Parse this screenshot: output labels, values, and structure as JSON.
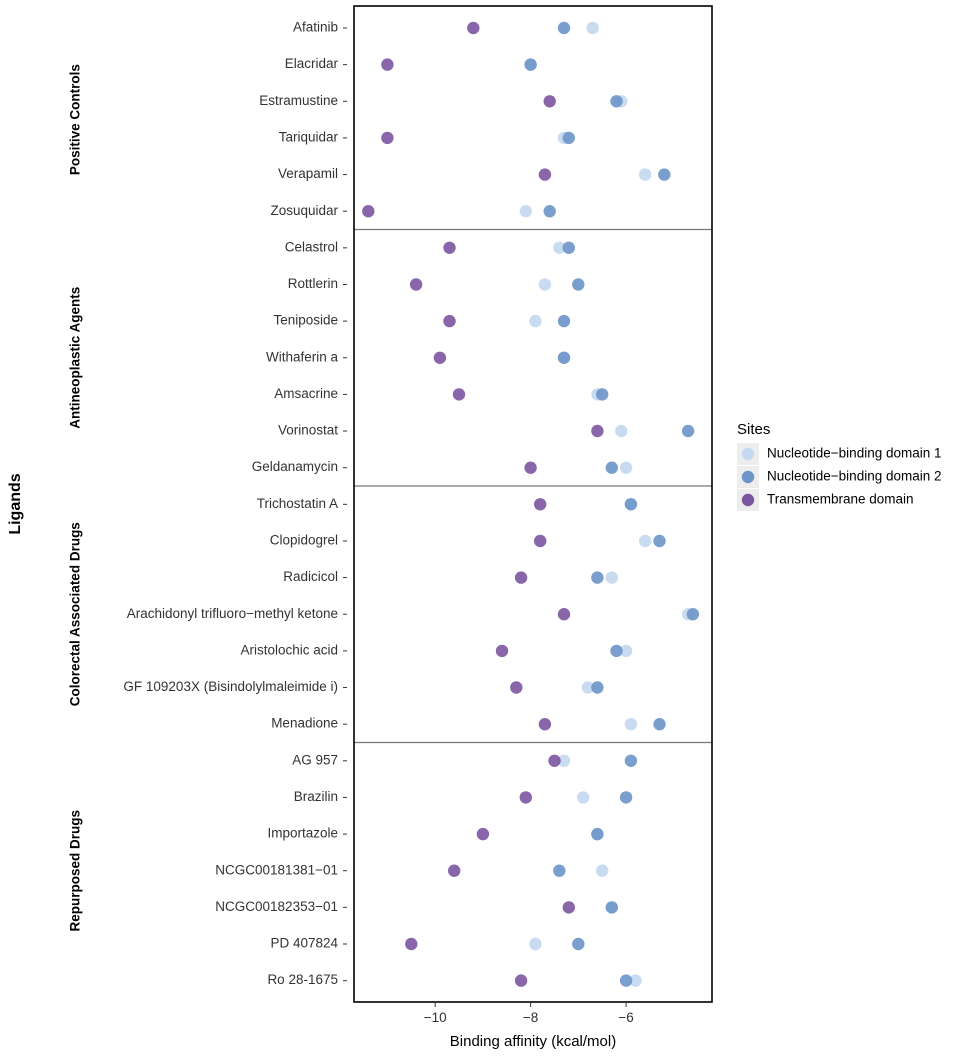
{
  "chart_data": {
    "type": "scatter",
    "xlabel": "Binding affinity (kcal/mol)",
    "ylabel": "Ligands",
    "xlim": [
      -11.7,
      -4.2
    ],
    "xticks": [
      -10,
      -8,
      -6
    ],
    "xtick_labels": [
      "−10",
      "−8",
      "−6"
    ],
    "legend": {
      "title": "Sites",
      "position": "right",
      "entries": [
        "Nucleotide−binding domain 1",
        "Nucleotide−binding domain 2",
        "Transmembrane domain"
      ]
    },
    "series_colors": {
      "nbd1": "#c6d9f0",
      "nbd2": "#6c95c9",
      "tmd": "#7b55a0"
    },
    "groups": [
      {
        "name": "Positive Controls",
        "ligands": [
          {
            "name": "Afatinib",
            "nbd1": -6.7,
            "nbd2": -7.3,
            "tmd": -9.2
          },
          {
            "name": "Elacridar",
            "nbd1": -8.0,
            "nbd2": -8.0,
            "tmd": -11.0
          },
          {
            "name": "Estramustine",
            "nbd1": -6.1,
            "nbd2": -6.2,
            "tmd": -7.6
          },
          {
            "name": "Tariquidar",
            "nbd1": -7.3,
            "nbd2": -7.2,
            "tmd": -11.0
          },
          {
            "name": "Verapamil",
            "nbd1": -5.6,
            "nbd2": -5.2,
            "tmd": -7.7
          },
          {
            "name": "Zosuquidar",
            "nbd1": -8.1,
            "nbd2": -7.6,
            "tmd": -11.4
          }
        ]
      },
      {
        "name": "Antineoplastic Agents",
        "ligands": [
          {
            "name": "Celastrol",
            "nbd1": -7.4,
            "nbd2": -7.2,
            "tmd": -9.7
          },
          {
            "name": "Rottlerin",
            "nbd1": -7.7,
            "nbd2": -7.0,
            "tmd": -10.4
          },
          {
            "name": "Teniposide",
            "nbd1": -7.9,
            "nbd2": -7.3,
            "tmd": -9.7
          },
          {
            "name": "Withaferin a",
            "nbd1": -7.3,
            "nbd2": -7.3,
            "tmd": -9.9
          },
          {
            "name": "Amsacrine",
            "nbd1": -6.6,
            "nbd2": -6.5,
            "tmd": -9.5
          },
          {
            "name": "Vorinostat",
            "nbd1": -6.1,
            "nbd2": -4.7,
            "tmd": -6.6
          },
          {
            "name": "Geldanamycin",
            "nbd1": -6.0,
            "nbd2": -6.3,
            "tmd": -8.0
          }
        ]
      },
      {
        "name": "Colorectal Associated Drugs",
        "ligands": [
          {
            "name": "Trichostatin A",
            "nbd1": -5.9,
            "nbd2": -5.9,
            "tmd": -7.8
          },
          {
            "name": "Clopidogrel",
            "nbd1": -5.6,
            "nbd2": -5.3,
            "tmd": -7.8
          },
          {
            "name": "Radicicol",
            "nbd1": -6.3,
            "nbd2": -6.6,
            "tmd": -8.2
          },
          {
            "name": "Arachidonyl trifluoro−methyl ketone",
            "nbd1": -4.7,
            "nbd2": -4.6,
            "tmd": -7.3
          },
          {
            "name": "Aristolochic acid",
            "nbd1": -6.0,
            "nbd2": -6.2,
            "tmd": -8.6
          },
          {
            "name": "GF 109203X (Bisindolylmaleimide i)",
            "nbd1": -6.8,
            "nbd2": -6.6,
            "tmd": -8.3
          },
          {
            "name": "Menadione",
            "nbd1": -5.9,
            "nbd2": -5.3,
            "tmd": -7.7
          }
        ]
      },
      {
        "name": "Repurposed Drugs",
        "ligands": [
          {
            "name": "AG 957",
            "nbd1": -7.3,
            "nbd2": -5.9,
            "tmd": -7.5
          },
          {
            "name": "Brazilin",
            "nbd1": -6.9,
            "nbd2": -6.0,
            "tmd": -8.1
          },
          {
            "name": "Importazole",
            "nbd1": -6.6,
            "nbd2": -6.6,
            "tmd": -9.0
          },
          {
            "name": "NCGC00181381−01",
            "nbd1": -6.5,
            "nbd2": -7.4,
            "tmd": -9.6
          },
          {
            "name": "NCGC00182353−01",
            "nbd1": -6.3,
            "nbd2": -6.3,
            "tmd": -7.2
          },
          {
            "name": "PD 407824",
            "nbd1": -7.9,
            "nbd2": -7.0,
            "tmd": -10.5
          },
          {
            "name": "Ro 28-1675",
            "nbd1": -5.8,
            "nbd2": -6.0,
            "tmd": -8.2
          }
        ]
      }
    ]
  }
}
